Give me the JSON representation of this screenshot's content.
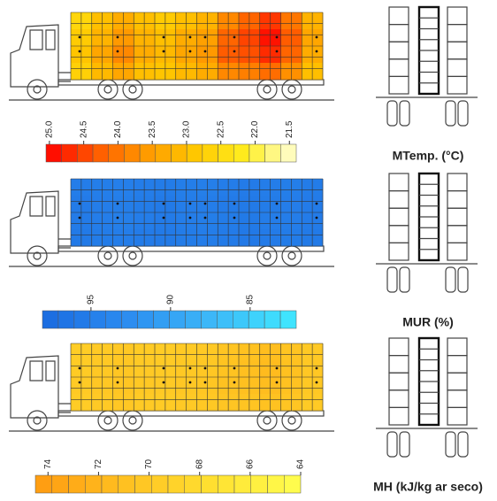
{
  "chart_data": [
    {
      "type": "heatmap",
      "title": "MTemp. (°C)",
      "values": [
        [
          22.6,
          23.0,
          23.3,
          23.0,
          22.8,
          23.0,
          23.2,
          23.8,
          24.2,
          24.6,
          24.0,
          23.2
        ],
        [
          22.8,
          23.2,
          23.6,
          23.2,
          23.0,
          23.3,
          23.5,
          24.2,
          24.5,
          24.9,
          24.3,
          23.4
        ],
        [
          22.9,
          23.4,
          23.8,
          23.3,
          23.1,
          23.4,
          23.6,
          24.3,
          24.4,
          24.7,
          24.2,
          23.3
        ],
        [
          22.7,
          23.1,
          23.4,
          23.0,
          22.9,
          23.1,
          23.3,
          23.8,
          23.9,
          24.1,
          23.7,
          23.0
        ]
      ],
      "clim": [
        25.05,
        21.4
      ],
      "colors": [
        "#ff0000",
        "#ff5a00",
        "#ff9a00",
        "#ffc800",
        "#ffee20",
        "#ffffd8"
      ],
      "cticks": [
        {
          "value": 25,
          "label": "25.0"
        },
        24.5,
        {
          "value": 24,
          "label": "24.0"
        },
        23.5,
        {
          "value": 23,
          "label": "23.0"
        },
        22.5,
        {
          "value": 22,
          "label": "22.0"
        },
        21.5
      ]
    },
    {
      "type": "heatmap",
      "title": "MUR (%)",
      "values": [
        [
          95.2,
          95.0,
          94.8,
          95.1,
          95.3,
          95.0,
          94.9,
          95.2,
          95.4,
          95.1,
          95.0,
          95.3
        ],
        [
          95.5,
          95.2,
          95.0,
          95.3,
          95.6,
          95.2,
          95.1,
          95.4,
          95.7,
          95.3,
          95.2,
          95.5
        ],
        [
          95.4,
          95.1,
          94.9,
          95.2,
          95.5,
          95.1,
          95.0,
          95.3,
          95.6,
          95.2,
          95.1,
          95.4
        ],
        [
          95.6,
          95.3,
          95.1,
          95.4,
          95.7,
          95.3,
          95.2,
          95.5,
          95.8,
          95.4,
          95.3,
          95.6
        ]
      ],
      "clim": [
        98.05,
        82.1
      ],
      "colors": [
        "#1a6be0",
        "#2c8cf0",
        "#3cb8f8",
        "#40e8ff"
      ],
      "cticks": [
        95,
        90,
        85
      ]
    },
    {
      "type": "heatmap",
      "title": "MH (kJ/kg ar seco)",
      "values": [
        [
          69.6,
          69.9,
          70.1,
          69.8,
          69.7,
          69.9,
          70.0,
          70.4,
          70.8,
          71.2,
          70.6,
          70.0
        ],
        [
          69.8,
          70.1,
          70.3,
          70.0,
          69.9,
          70.1,
          70.2,
          70.7,
          71.1,
          71.5,
          70.9,
          70.2
        ],
        [
          69.9,
          70.2,
          70.4,
          70.1,
          70.0,
          70.2,
          70.3,
          70.8,
          71.0,
          71.3,
          70.8,
          70.1
        ],
        [
          69.7,
          70.0,
          70.2,
          69.9,
          69.8,
          70.0,
          70.1,
          70.4,
          70.6,
          70.8,
          70.4,
          69.9
        ]
      ],
      "clim": [
        74.5,
        64
      ],
      "colors": [
        "#ff9a10",
        "#ffc020",
        "#ffe030",
        "#ffff50"
      ],
      "cticks": [
        74,
        72,
        70,
        68,
        66,
        64
      ]
    }
  ]
}
